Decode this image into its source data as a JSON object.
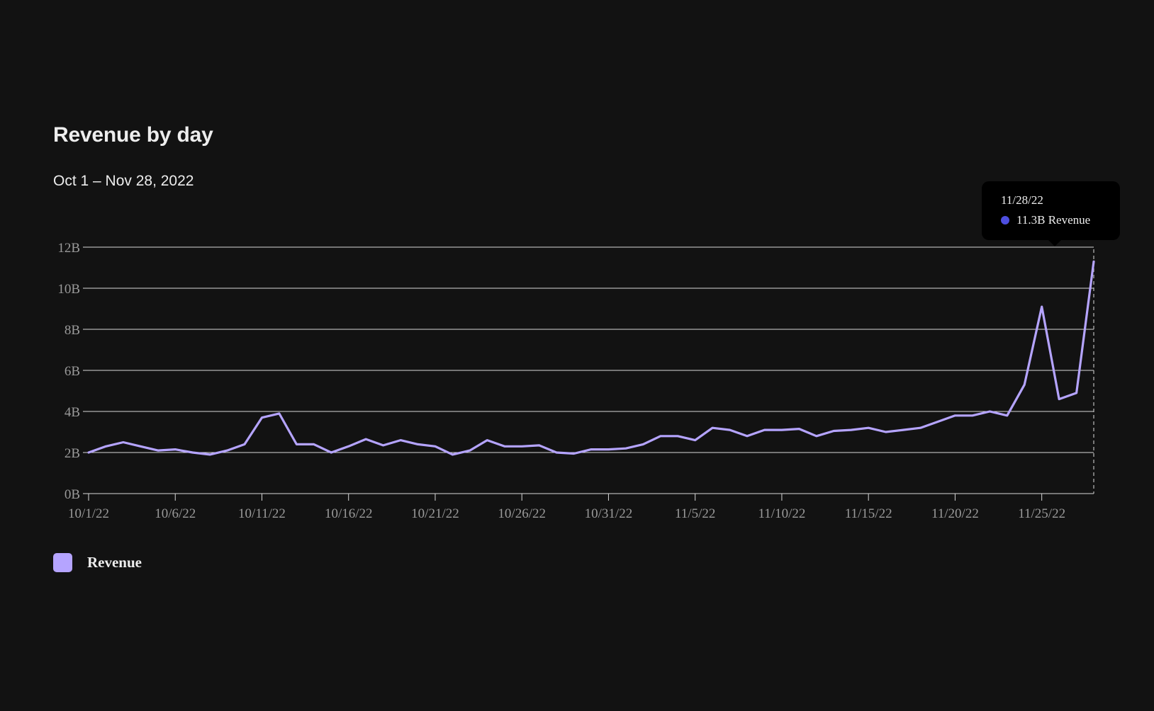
{
  "chart_data": {
    "type": "line",
    "title": "Revenue by day",
    "subtitle": "Oct 1 – Nov 28, 2022",
    "xlabel": "",
    "ylabel": "",
    "ylim": [
      0,
      12
    ],
    "y_ticks": [
      "0B",
      "2B",
      "4B",
      "6B",
      "8B",
      "10B",
      "12B"
    ],
    "x_tick_labels": [
      "10/1/22",
      "10/6/22",
      "10/11/22",
      "10/16/22",
      "10/21/22",
      "10/26/22",
      "10/31/22",
      "11/5/22",
      "11/10/22",
      "11/15/22",
      "11/20/22",
      "11/25/22"
    ],
    "grid": true,
    "legend_position": "bottom-left",
    "x_start": "10/1/22",
    "x_end": "11/28/22",
    "series": [
      {
        "name": "Revenue",
        "color": "#b5a4ff",
        "values": [
          2.0,
          2.3,
          2.5,
          2.3,
          2.1,
          2.15,
          2.0,
          1.9,
          2.1,
          2.4,
          3.7,
          3.9,
          2.4,
          2.4,
          2.0,
          2.3,
          2.65,
          2.35,
          2.6,
          2.4,
          2.3,
          1.9,
          2.1,
          2.6,
          2.3,
          2.3,
          2.35,
          2.0,
          1.95,
          2.15,
          2.15,
          2.2,
          2.4,
          2.8,
          2.8,
          2.6,
          3.2,
          3.1,
          2.8,
          3.1,
          3.1,
          3.15,
          2.8,
          3.05,
          3.1,
          3.2,
          3.0,
          3.1,
          3.2,
          3.5,
          3.8,
          3.8,
          4.0,
          3.8,
          5.3,
          9.1,
          4.6,
          4.9,
          11.3
        ]
      }
    ],
    "tooltip": {
      "date": "11/28/22",
      "label": "11.3B Revenue",
      "dot_color": "#4d4ee0"
    }
  }
}
